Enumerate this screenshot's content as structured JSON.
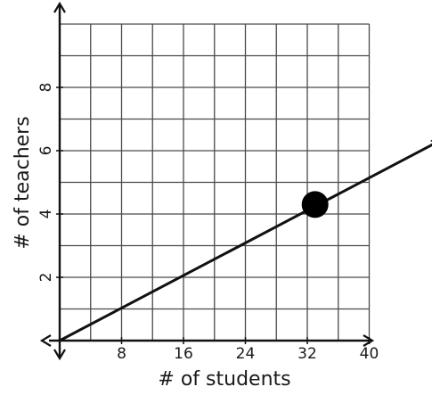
{
  "chart_data": {
    "type": "line",
    "xlabel": "# of students",
    "ylabel": "# of teachers",
    "xlim": [
      0,
      40
    ],
    "ylim": [
      0,
      10
    ],
    "x_ticks": [
      8,
      16,
      24,
      32,
      40
    ],
    "y_ticks": [
      2,
      4,
      6,
      8
    ],
    "grid": true,
    "x_grid_step": 4,
    "y_grid_step": 1,
    "series": [
      {
        "x": [
          0,
          49
        ],
        "y": [
          0,
          6.3
        ],
        "arrow_at_end": true,
        "color": "#111111"
      }
    ],
    "highlighted_point": {
      "x": 33,
      "y": 4.3,
      "color": "#000000"
    }
  }
}
